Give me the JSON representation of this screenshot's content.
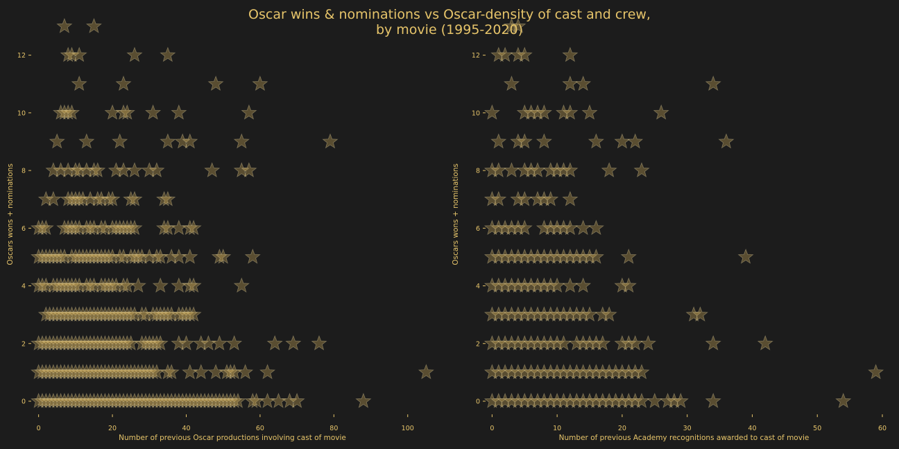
{
  "title_line1": "Oscar wins & nominations vs Oscar-density of cast and crew,",
  "title_line2": "by movie (1995-2020)",
  "colors": {
    "background": "#1c1c1c",
    "text": "#e6c46a",
    "star": "#d9b35c",
    "star_edge": "#f5e6b0"
  },
  "chart_data": [
    {
      "type": "scatter",
      "marker": "star",
      "xlabel": "Number of previous Oscar productions involving cast of movie",
      "ylabel": "Oscars wons + nominations",
      "xlim": [
        -2,
        107
      ],
      "ylim": [
        -0.6,
        13
      ],
      "xticks": [
        0,
        20,
        40,
        60,
        80,
        100
      ],
      "yticks": [
        0,
        2,
        4,
        6,
        8,
        10,
        12
      ],
      "grid": false,
      "rows": [
        {
          "y": 0,
          "x": [
            0,
            1,
            2,
            3,
            4,
            5,
            6,
            7,
            8,
            9,
            10,
            11,
            12,
            13,
            14,
            15,
            16,
            17,
            18,
            19,
            20,
            21,
            22,
            23,
            24,
            25,
            26,
            27,
            28,
            29,
            30,
            31,
            32,
            33,
            34,
            35,
            36,
            37,
            38,
            39,
            40,
            41,
            42,
            43,
            44,
            45,
            46,
            47,
            48,
            49,
            50,
            51,
            52,
            53,
            54,
            58,
            59,
            62,
            65,
            68,
            70,
            88
          ]
        },
        {
          "y": 1,
          "x": [
            0,
            1,
            2,
            3,
            4,
            5,
            6,
            7,
            8,
            9,
            10,
            11,
            12,
            13,
            14,
            15,
            16,
            17,
            18,
            19,
            20,
            21,
            22,
            23,
            24,
            25,
            26,
            27,
            28,
            29,
            30,
            31,
            32,
            35,
            36,
            41,
            44,
            48,
            51,
            52,
            53,
            56,
            62,
            105
          ]
        },
        {
          "y": 2,
          "x": [
            0,
            1,
            2,
            3,
            4,
            5,
            6,
            7,
            8,
            9,
            10,
            11,
            12,
            13,
            14,
            15,
            16,
            17,
            18,
            19,
            20,
            21,
            22,
            23,
            24,
            25,
            28,
            29,
            30,
            31,
            32,
            33,
            38,
            40,
            44,
            46,
            49,
            53,
            64,
            69,
            76
          ]
        },
        {
          "y": 3,
          "x": [
            2,
            3,
            4,
            5,
            6,
            7,
            8,
            9,
            10,
            11,
            12,
            13,
            14,
            15,
            16,
            17,
            18,
            19,
            20,
            21,
            22,
            23,
            24,
            25,
            26,
            28,
            29,
            31,
            32,
            33,
            34,
            35,
            36,
            38,
            39,
            40,
            41,
            42
          ]
        },
        {
          "y": 4,
          "x": [
            0,
            1,
            2,
            4,
            5,
            6,
            7,
            8,
            9,
            10,
            11,
            13,
            14,
            15,
            17,
            18,
            19,
            20,
            21,
            23,
            24,
            27,
            33,
            38,
            41,
            42,
            55
          ]
        },
        {
          "y": 5,
          "x": [
            0,
            1,
            2,
            3,
            4,
            5,
            6,
            7,
            9,
            10,
            11,
            12,
            13,
            14,
            15,
            16,
            17,
            18,
            19,
            20,
            22,
            23,
            25,
            26,
            27,
            28,
            30,
            32,
            33,
            36,
            38,
            41,
            49,
            50,
            58
          ]
        },
        {
          "y": 6,
          "x": [
            0,
            1,
            2,
            7,
            8,
            9,
            10,
            11,
            13,
            14,
            15,
            17,
            18,
            20,
            21,
            22,
            23,
            24,
            25,
            26,
            34,
            35,
            38,
            41,
            42
          ]
        },
        {
          "y": 7,
          "x": [
            2,
            4,
            8,
            9,
            10,
            11,
            12,
            14,
            16,
            17,
            19,
            20,
            25,
            26,
            34,
            35
          ]
        },
        {
          "y": 8,
          "x": [
            4,
            6,
            8,
            10,
            11,
            13,
            15,
            16,
            21,
            23,
            26,
            30,
            32,
            47,
            55,
            57
          ]
        },
        {
          "y": 9,
          "x": [
            5,
            13,
            22,
            35,
            39,
            41,
            55,
            79
          ]
        },
        {
          "y": 10,
          "x": [
            6,
            7,
            8,
            9,
            20,
            23,
            24,
            31,
            38,
            57
          ]
        },
        {
          "y": 11,
          "x": [
            11,
            23,
            48,
            60
          ]
        },
        {
          "y": 12,
          "x": [
            8,
            9,
            11,
            26,
            35
          ]
        },
        {
          "y": 13,
          "x": [
            7,
            15
          ]
        }
      ]
    },
    {
      "type": "scatter",
      "marker": "star",
      "xlabel": "Number of previous Academy recognitions awarded to cast of movie",
      "ylabel": "Oscars wons + nominations",
      "xlim": [
        -1,
        60
      ],
      "ylim": [
        -0.6,
        13
      ],
      "xticks": [
        0,
        10,
        20,
        30,
        40,
        50,
        60
      ],
      "yticks": [
        0,
        2,
        4,
        6,
        8,
        10,
        12
      ],
      "grid": false,
      "rows": [
        {
          "y": 0,
          "x": [
            0,
            1,
            2,
            3,
            4,
            5,
            6,
            7,
            8,
            9,
            10,
            11,
            12,
            13,
            14,
            15,
            16,
            17,
            18,
            19,
            20,
            21,
            22,
            23,
            25,
            27,
            28,
            29,
            34,
            54
          ]
        },
        {
          "y": 1,
          "x": [
            0,
            1,
            2,
            3,
            4,
            5,
            6,
            7,
            8,
            9,
            10,
            11,
            12,
            13,
            14,
            15,
            16,
            17,
            18,
            19,
            20,
            21,
            22,
            23,
            59
          ]
        },
        {
          "y": 2,
          "x": [
            0,
            1,
            2,
            3,
            4,
            5,
            6,
            7,
            8,
            9,
            10,
            11,
            13,
            14,
            15,
            16,
            17,
            20,
            21,
            22,
            24,
            34,
            42
          ]
        },
        {
          "y": 3,
          "x": [
            0,
            1,
            2,
            3,
            4,
            5,
            6,
            7,
            8,
            9,
            10,
            11,
            12,
            13,
            14,
            15,
            17,
            18,
            31,
            32
          ]
        },
        {
          "y": 4,
          "x": [
            0,
            1,
            2,
            3,
            4,
            5,
            6,
            7,
            8,
            9,
            10,
            12,
            14,
            20,
            21
          ]
        },
        {
          "y": 5,
          "x": [
            0,
            1,
            2,
            3,
            4,
            5,
            6,
            7,
            8,
            9,
            10,
            11,
            12,
            13,
            14,
            15,
            16,
            21,
            39
          ]
        },
        {
          "y": 6,
          "x": [
            0,
            1,
            2,
            3,
            4,
            5,
            8,
            9,
            10,
            11,
            12,
            14,
            16
          ]
        },
        {
          "y": 7,
          "x": [
            0,
            1,
            4,
            5,
            7,
            8,
            9,
            12
          ]
        },
        {
          "y": 8,
          "x": [
            0,
            1,
            3,
            5,
            6,
            7,
            9,
            10,
            11,
            12,
            18,
            23
          ]
        },
        {
          "y": 9,
          "x": [
            1,
            4,
            5,
            8,
            16,
            20,
            22,
            36
          ]
        },
        {
          "y": 10,
          "x": [
            0,
            5,
            6,
            7,
            8,
            11,
            12,
            15,
            26
          ]
        },
        {
          "y": 11,
          "x": [
            3,
            12,
            14,
            34
          ]
        },
        {
          "y": 12,
          "x": [
            1,
            2,
            4,
            5,
            12
          ]
        },
        {
          "y": 13,
          "x": [
            3,
            4
          ]
        }
      ]
    }
  ]
}
